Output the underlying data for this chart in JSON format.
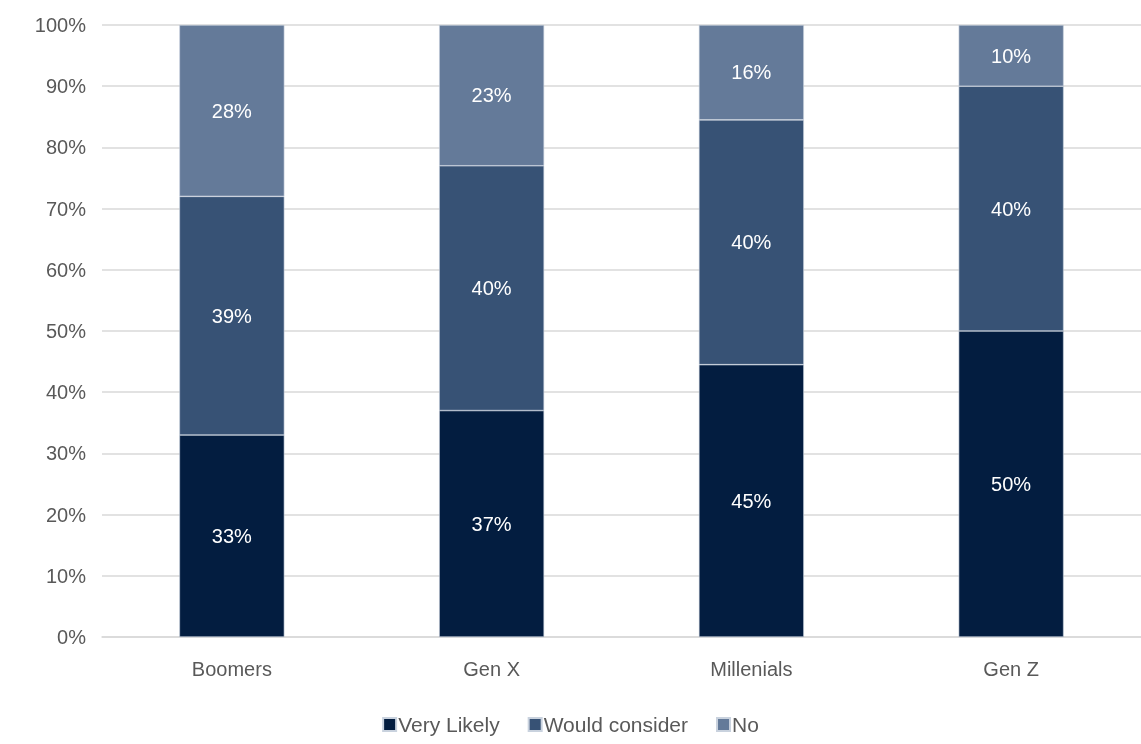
{
  "chart_data": {
    "type": "bar",
    "stacked": true,
    "categories": [
      "Boomers",
      "Gen X",
      "Millenials",
      "Gen Z"
    ],
    "series": [
      {
        "name": "Very Likely",
        "color": "#031d40",
        "values": [
          33,
          37,
          44.5,
          50
        ],
        "value_labels": [
          "33%",
          "37%",
          "45%",
          "50%"
        ]
      },
      {
        "name": "Would consider",
        "color": "#375275",
        "values": [
          39,
          40,
          40,
          40
        ],
        "value_labels": [
          "39%",
          "40%",
          "40%",
          "40%"
        ]
      },
      {
        "name": "No",
        "color": "#647a99",
        "values": [
          28,
          23,
          15.5,
          10
        ],
        "value_labels": [
          "28%",
          "23%",
          "16%",
          "10%"
        ]
      }
    ],
    "ylim": [
      0,
      100
    ],
    "yticks": [
      {
        "value": 0,
        "label": "0%"
      },
      {
        "value": 10,
        "label": "10%"
      },
      {
        "value": 20,
        "label": "20%"
      },
      {
        "value": 30,
        "label": "30%"
      },
      {
        "value": 40,
        "label": "40%"
      },
      {
        "value": 50,
        "label": "50%"
      },
      {
        "value": 60,
        "label": "60%"
      },
      {
        "value": 70,
        "label": "70%"
      },
      {
        "value": 80,
        "label": "80%"
      },
      {
        "value": 90,
        "label": "90%"
      },
      {
        "value": 100,
        "label": "100%"
      }
    ],
    "grid": "y",
    "legend": "bottom"
  }
}
